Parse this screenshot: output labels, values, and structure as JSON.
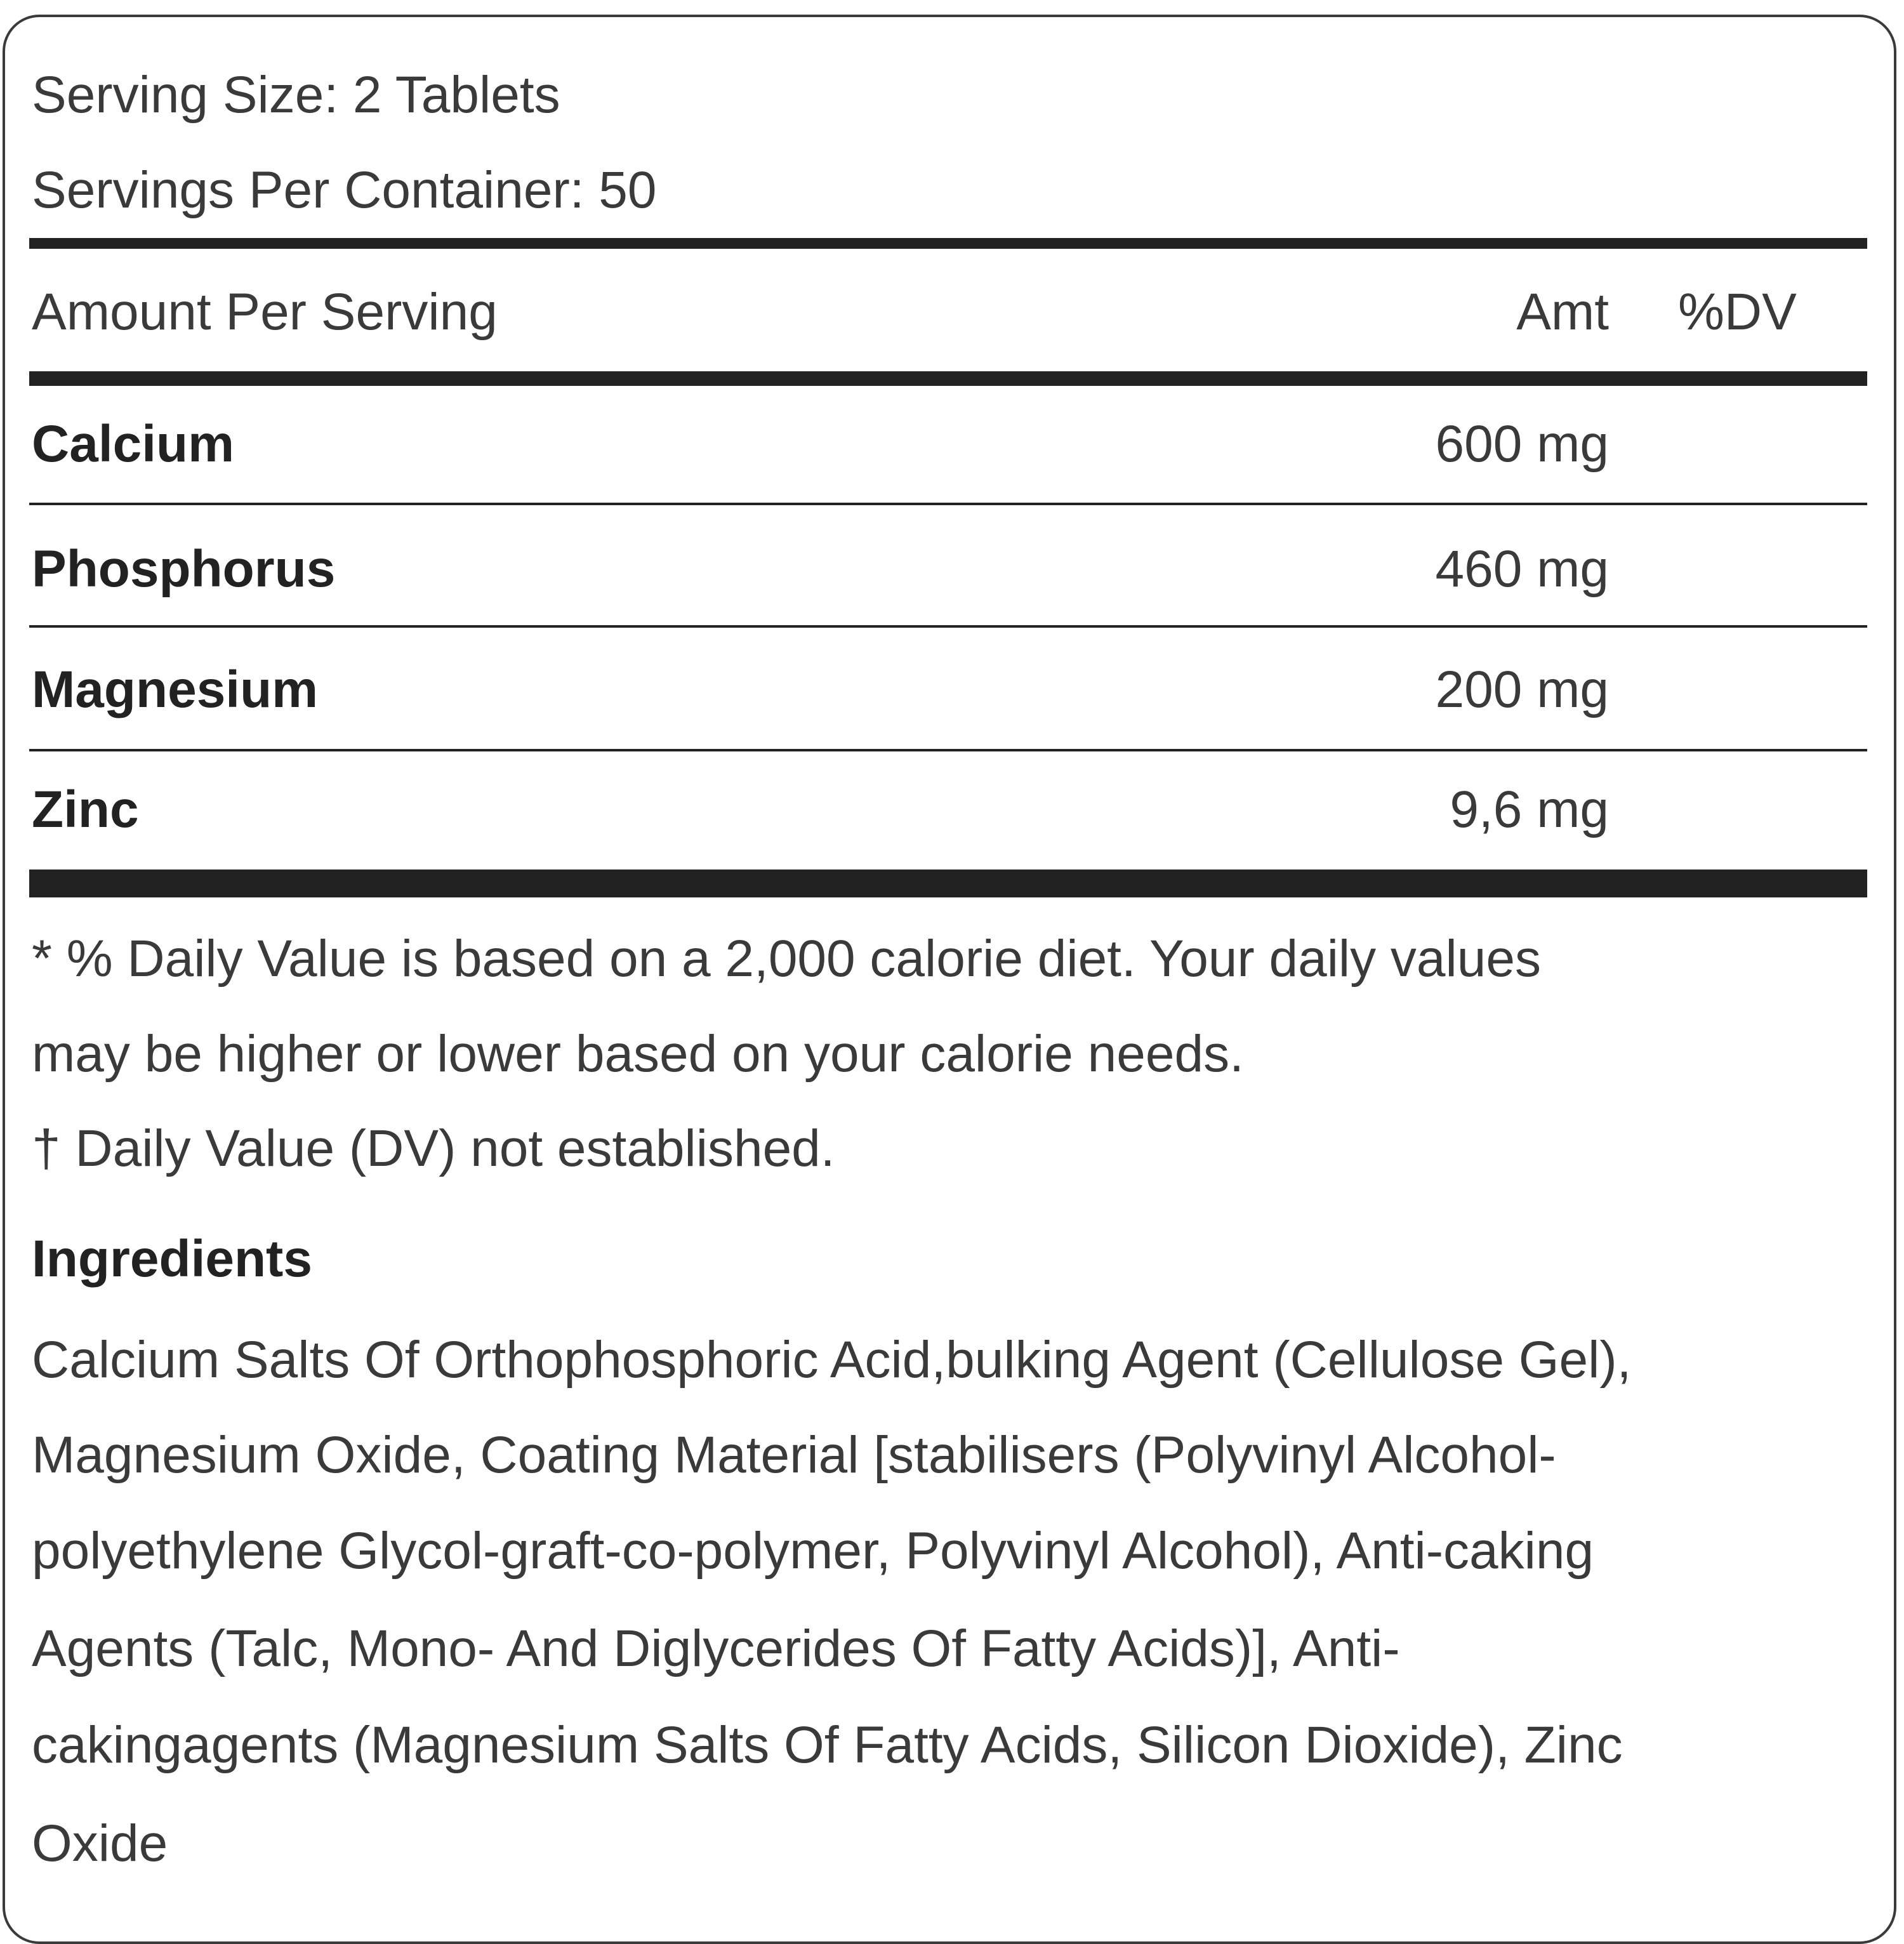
{
  "serving_size": "Serving Size: 2 Tablets",
  "servings_per_container": "Servings Per Container: 50",
  "header": {
    "amount_per_serving": "Amount Per Serving",
    "amt": "Amt",
    "dv": "%DV"
  },
  "nutrients": [
    {
      "name": "Calcium",
      "amount": "600 mg",
      "dv": ""
    },
    {
      "name": "Phosphorus",
      "amount": "460 mg",
      "dv": ""
    },
    {
      "name": "Magnesium",
      "amount": "200 mg",
      "dv": ""
    },
    {
      "name": "Zinc",
      "amount": "9,6 mg",
      "dv": ""
    }
  ],
  "footnotes": {
    "daily_value_lines": [
      "* % Daily Value is based on a 2,000 calorie diet. Your daily values",
      "may be higher or lower based on your calorie needs."
    ],
    "not_established": "† Daily Value (DV) not established."
  },
  "ingredients": {
    "title": "Ingredients",
    "lines": [
      "Calcium Salts Of Orthophosphoric Acid,bulking Agent (Cellulose Gel),",
      "Magnesium Oxide, Coating Material [stabilisers (Polyvinyl Alcohol-",
      "polyethylene Glycol-graft-co-polymer, Polyvinyl Alcohol), Anti-caking",
      "Agents (Talc, Mono- And Diglycerides Of Fatty Acids)], Anti-",
      "cakingagents (Magnesium Salts Of Fatty Acids, Silicon Dioxide), Zinc",
      "Oxide"
    ]
  }
}
